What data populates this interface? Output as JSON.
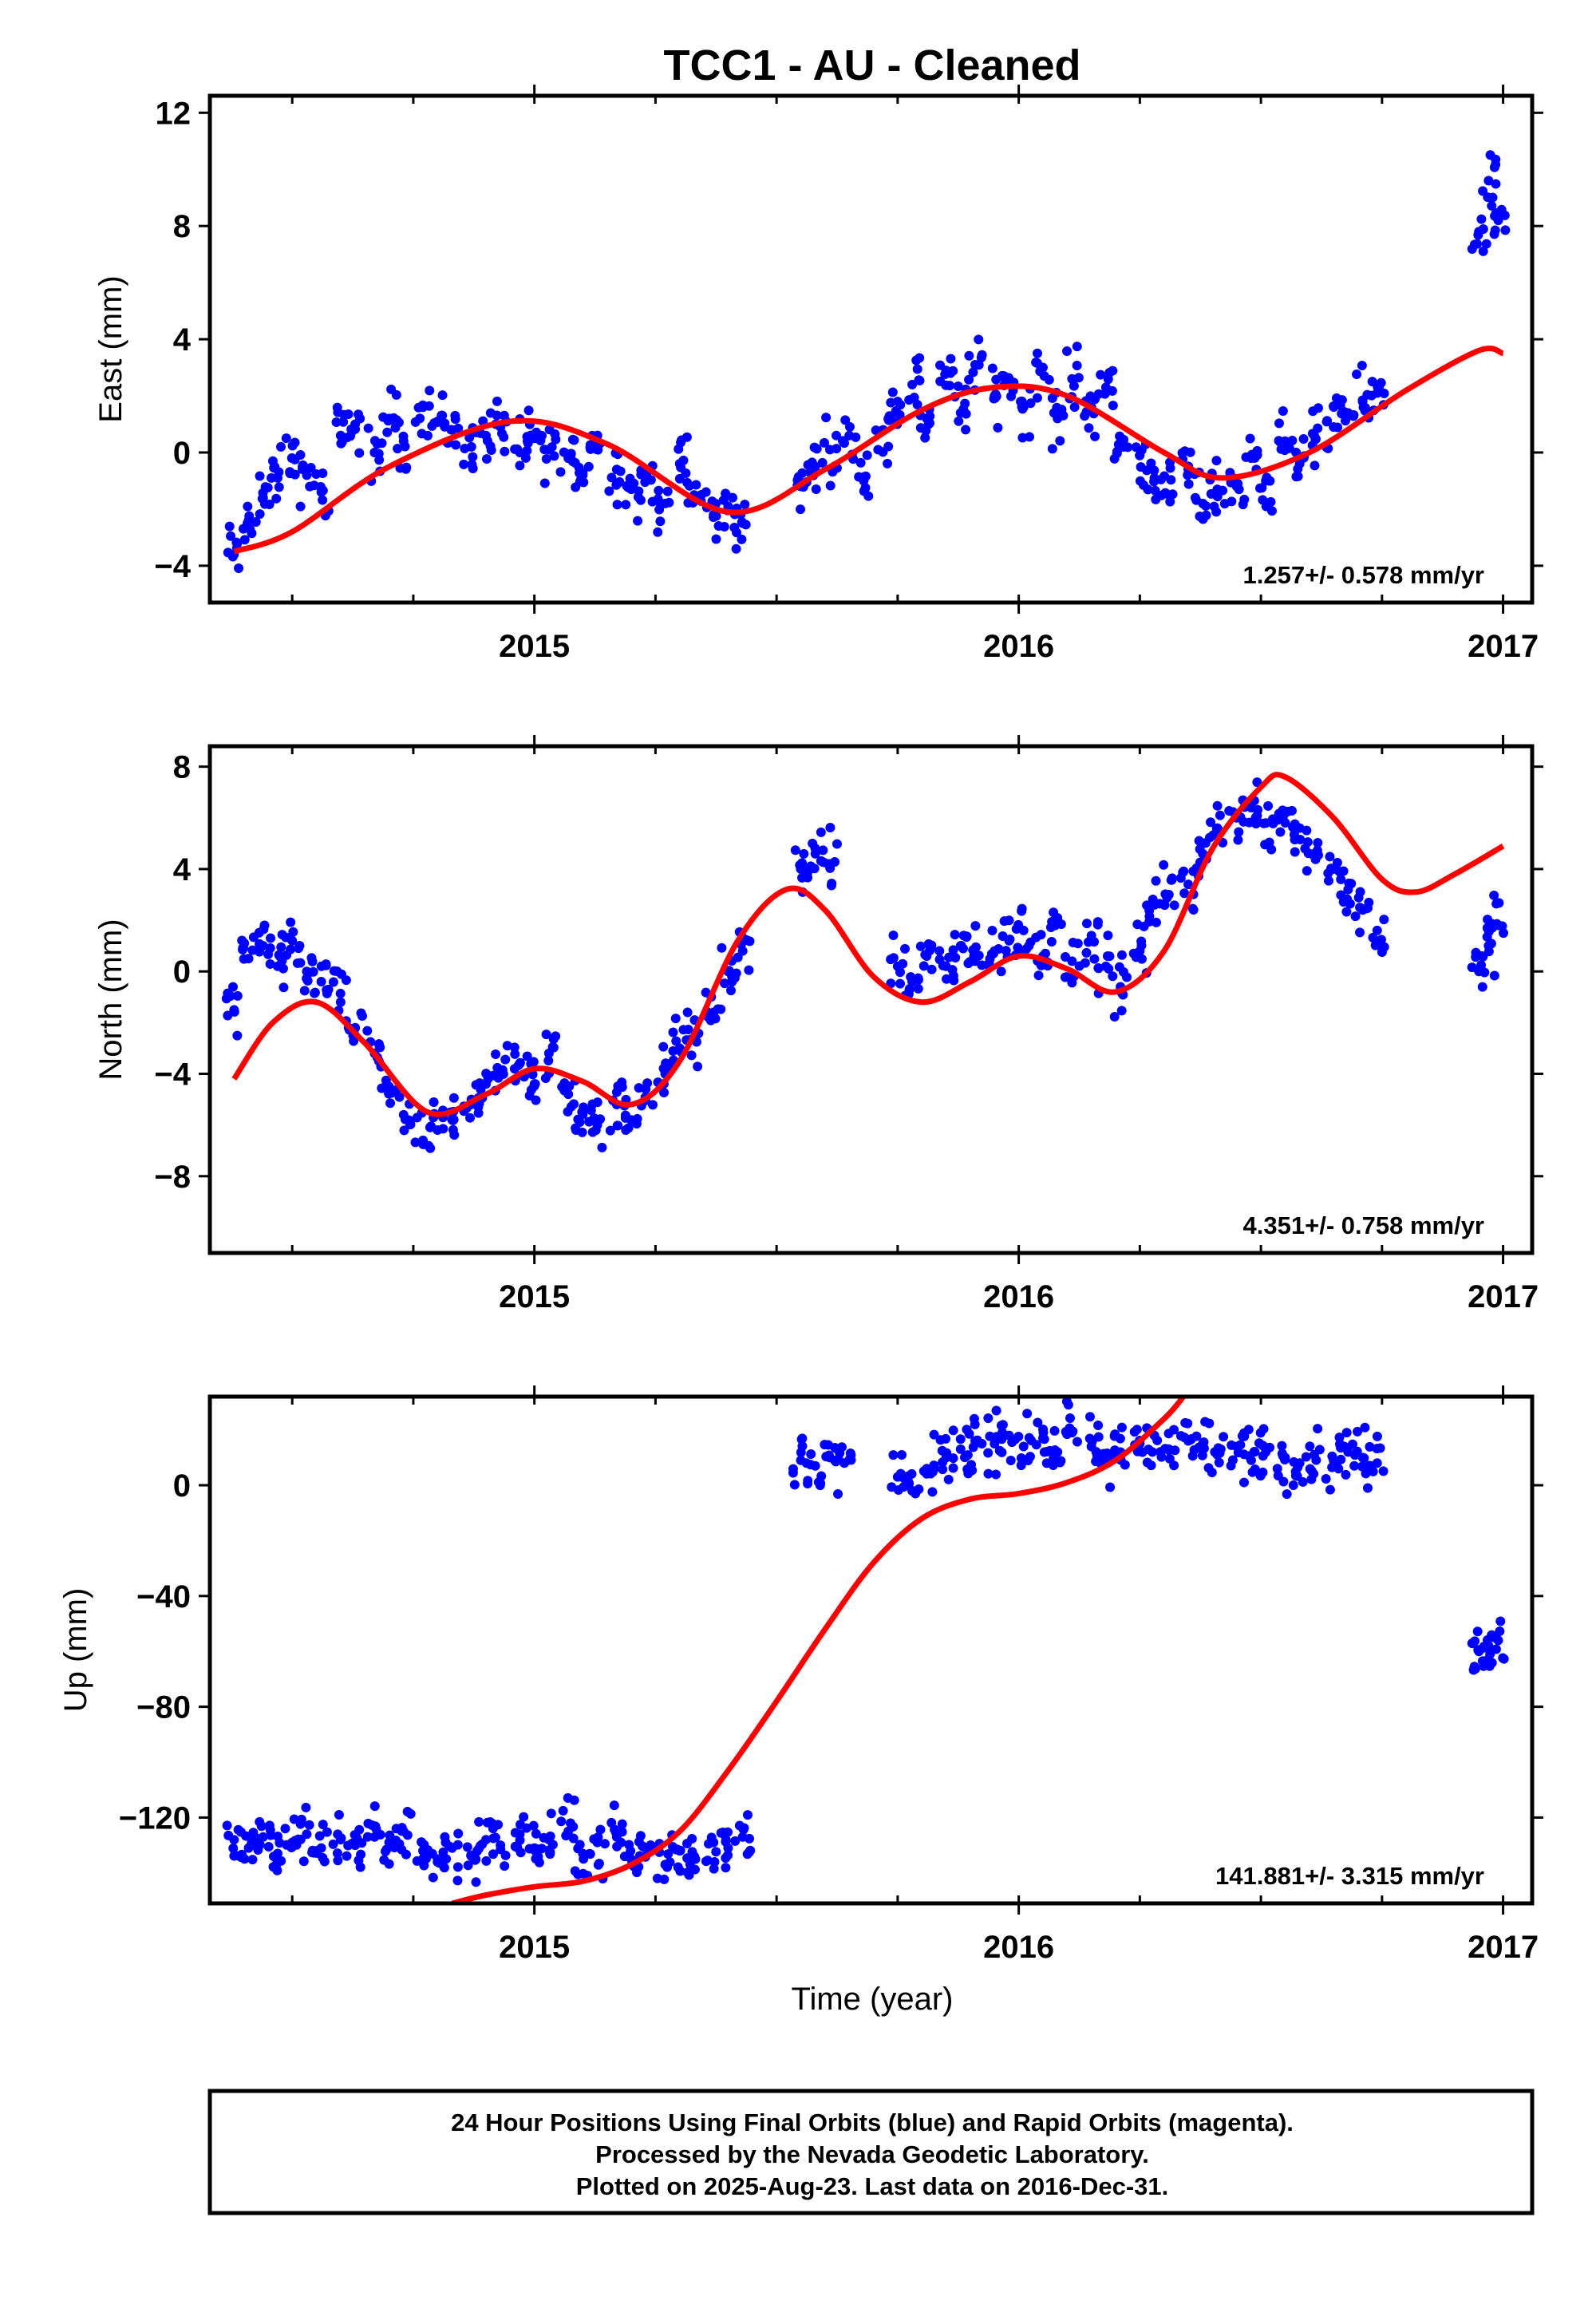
{
  "title": "TCC1  - AU - Cleaned",
  "colors": {
    "final_orbit": "#0000ff",
    "model_fit": "#ff0000"
  },
  "chart_data": [
    {
      "type": "scatter",
      "ylabel": "East (mm)",
      "xlabel": "",
      "xlim": [
        2014.33,
        2017.06
      ],
      "ylim": [
        -5.3,
        12.6
      ],
      "xticks": [
        2015,
        2016,
        2017
      ],
      "yticks": [
        -4,
        0,
        4,
        8,
        12
      ],
      "rate_text": "1.257+/- 0.578 mm/yr",
      "fit_curve": {
        "name": "",
        "x": [
          2014.38,
          2014.5,
          2014.7,
          2014.95,
          2015.15,
          2015.4,
          2015.6,
          2015.8,
          2015.95,
          2016.1,
          2016.3,
          2016.42,
          2016.6,
          2016.8,
          2016.95,
          2017.0
        ],
        "y": [
          -3.5,
          -2.8,
          -0.5,
          1.1,
          0.3,
          -2.1,
          -0.6,
          1.5,
          2.3,
          2.0,
          0.0,
          -0.9,
          0.0,
          2.2,
          3.6,
          3.5
        ]
      },
      "data_points": {
        "name": "",
        "x": [
          2014.38,
          2014.41,
          2014.44,
          2014.47,
          2014.5,
          2014.53,
          2014.56,
          2014.6,
          2014.63,
          2014.67,
          2014.7,
          2014.73,
          2014.77,
          2014.8,
          2014.83,
          2014.87,
          2014.9,
          2014.93,
          2014.97,
          2015.0,
          2015.03,
          2015.07,
          2015.1,
          2015.13,
          2015.17,
          2015.2,
          2015.23,
          2015.27,
          2015.3,
          2015.33,
          2015.37,
          2015.4,
          2015.43,
          2015.55,
          2015.58,
          2015.61,
          2015.65,
          2015.68,
          2015.72,
          2015.75,
          2015.78,
          2015.81,
          2015.85,
          2015.88,
          2015.91,
          2015.95,
          2015.98,
          2016.01,
          2016.05,
          2016.08,
          2016.11,
          2016.15,
          2016.18,
          2016.21,
          2016.25,
          2016.28,
          2016.31,
          2016.35,
          2016.38,
          2016.41,
          2016.45,
          2016.48,
          2016.51,
          2016.55,
          2016.58,
          2016.61,
          2016.65,
          2016.68,
          2016.71,
          2016.74,
          2016.95,
          2016.97,
          2016.99
        ],
        "y": [
          -3.6,
          -2.4,
          -1.6,
          -0.9,
          -0.2,
          -0.8,
          -1.4,
          0.6,
          1.0,
          0.0,
          1.2,
          0.4,
          1.6,
          1.1,
          0.8,
          0.2,
          0.6,
          0.9,
          0.0,
          0.5,
          0.1,
          -0.2,
          -0.7,
          0.4,
          -0.6,
          -1.3,
          -1.0,
          -1.8,
          -0.4,
          -1.5,
          -2.2,
          -1.9,
          -2.5,
          -1.2,
          -0.5,
          0.1,
          0.6,
          -1.0,
          0.8,
          1.8,
          2.4,
          1.2,
          2.9,
          1.4,
          3.1,
          2.0,
          2.6,
          1.6,
          3.0,
          1.2,
          2.6,
          1.6,
          2.3,
          0.2,
          -0.1,
          -0.9,
          -1.5,
          -0.6,
          -1.8,
          -1.3,
          -1.2,
          -0.2,
          -1.0,
          0.4,
          -0.4,
          0.6,
          0.9,
          1.4,
          1.8,
          2.1,
          7.8,
          9.6,
          8.2
        ]
      }
    },
    {
      "type": "scatter",
      "ylabel": "North (mm)",
      "xlabel": "",
      "xlim": [
        2014.33,
        2017.06
      ],
      "ylim": [
        -11.0,
        8.8
      ],
      "xticks": [
        2015,
        2016,
        2017
      ],
      "yticks": [
        -8,
        -4,
        0,
        4,
        8
      ],
      "rate_text": "4.351+/- 0.758 mm/yr",
      "fit_curve": {
        "name": "",
        "x": [
          2014.38,
          2014.46,
          2014.55,
          2014.65,
          2014.78,
          2014.9,
          2015.0,
          2015.1,
          2015.2,
          2015.3,
          2015.42,
          2015.52,
          2015.6,
          2015.7,
          2015.8,
          2015.9,
          2016.0,
          2016.1,
          2016.2,
          2016.3,
          2016.4,
          2016.5,
          2016.55,
          2016.65,
          2016.75,
          2016.82,
          2016.9,
          2017.0
        ],
        "y": [
          -4.2,
          -2.0,
          -1.2,
          -2.8,
          -5.5,
          -4.8,
          -3.8,
          -4.3,
          -5.2,
          -3.5,
          1.2,
          3.2,
          2.4,
          -0.2,
          -1.2,
          -0.4,
          0.6,
          0.1,
          -0.8,
          0.8,
          4.8,
          7.2,
          7.6,
          6.0,
          3.6,
          3.1,
          3.8,
          4.9
        ]
      },
      "data_points": {
        "name": "",
        "x": [
          2014.38,
          2014.41,
          2014.44,
          2014.47,
          2014.5,
          2014.53,
          2014.56,
          2014.6,
          2014.63,
          2014.67,
          2014.7,
          2014.73,
          2014.77,
          2014.8,
          2014.83,
          2014.87,
          2014.9,
          2014.93,
          2014.97,
          2015.0,
          2015.03,
          2015.07,
          2015.1,
          2015.13,
          2015.17,
          2015.2,
          2015.23,
          2015.27,
          2015.3,
          2015.33,
          2015.37,
          2015.4,
          2015.43,
          2015.55,
          2015.58,
          2015.61,
          2015.75,
          2015.78,
          2015.81,
          2015.85,
          2015.88,
          2015.91,
          2015.95,
          2015.98,
          2016.01,
          2016.05,
          2016.08,
          2016.11,
          2016.15,
          2016.18,
          2016.21,
          2016.25,
          2016.28,
          2016.31,
          2016.35,
          2016.38,
          2016.41,
          2016.45,
          2016.48,
          2016.51,
          2016.55,
          2016.58,
          2016.61,
          2016.65,
          2016.68,
          2016.71,
          2016.74,
          2016.95,
          2016.97,
          2016.99
        ],
        "y": [
          -1.5,
          0.5,
          1.0,
          0.2,
          1.2,
          0.0,
          -0.4,
          -1.2,
          -2.2,
          -3.2,
          -4.5,
          -5.6,
          -6.6,
          -6.2,
          -5.8,
          -5.0,
          -4.4,
          -4.0,
          -3.6,
          -4.4,
          -3.2,
          -4.8,
          -5.6,
          -6.0,
          -5.2,
          -5.8,
          -4.6,
          -4.0,
          -3.0,
          -2.6,
          -1.6,
          0.0,
          0.8,
          4.0,
          4.6,
          4.2,
          0.2,
          -0.4,
          0.6,
          0.2,
          1.0,
          0.4,
          0.8,
          1.2,
          1.6,
          0.6,
          2.0,
          0.4,
          1.4,
          0.2,
          -0.6,
          0.8,
          2.6,
          3.0,
          3.4,
          4.6,
          5.6,
          6.0,
          6.4,
          5.8,
          6.2,
          5.6,
          4.6,
          4.0,
          3.2,
          2.4,
          1.6,
          0.0,
          1.0,
          1.8
        ]
      }
    },
    {
      "type": "scatter",
      "ylabel": "Up (mm)",
      "xlabel": "Time (year)",
      "xlim": [
        2014.33,
        2017.06
      ],
      "ylim": [
        -151,
        32
      ],
      "xticks": [
        2015,
        2016,
        2017
      ],
      "yticks": [
        -120,
        -80,
        -40,
        0
      ],
      "rate_text": "141.881+/- 3.315 mm/yr",
      "fit_curve": {
        "name": "",
        "x": [
          2014.83,
          2014.9,
          2015.0,
          2015.1,
          2015.2,
          2015.3,
          2015.4,
          2015.5,
          2015.6,
          2015.7,
          2015.8,
          2015.9,
          2016.0,
          2016.1,
          2016.2,
          2016.3,
          2016.34
        ],
        "y": [
          -151,
          -148,
          -145,
          -143,
          -137,
          -125,
          -103,
          -78,
          -52,
          -28,
          -12,
          -5,
          -3,
          1,
          9,
          24,
          32
        ]
      },
      "data_points": {
        "name": "",
        "x": [
          2014.38,
          2014.41,
          2014.44,
          2014.47,
          2014.5,
          2014.53,
          2014.56,
          2014.6,
          2014.63,
          2014.67,
          2014.7,
          2014.73,
          2014.77,
          2014.8,
          2014.83,
          2014.87,
          2014.9,
          2014.93,
          2014.97,
          2015.0,
          2015.03,
          2015.07,
          2015.1,
          2015.13,
          2015.17,
          2015.2,
          2015.23,
          2015.27,
          2015.3,
          2015.33,
          2015.37,
          2015.4,
          2015.43,
          2015.55,
          2015.58,
          2015.61,
          2015.64,
          2015.75,
          2015.78,
          2015.81,
          2015.85,
          2015.88,
          2015.91,
          2015.95,
          2015.98,
          2016.01,
          2016.05,
          2016.08,
          2016.11,
          2016.15,
          2016.18,
          2016.21,
          2016.25,
          2016.28,
          2016.31,
          2016.35,
          2016.38,
          2016.41,
          2016.45,
          2016.48,
          2016.51,
          2016.55,
          2016.58,
          2016.61,
          2016.65,
          2016.68,
          2016.71,
          2016.74,
          2016.95,
          2016.97,
          2016.99
        ],
        "y": [
          -128,
          -131,
          -127,
          -133,
          -129,
          -126,
          -131,
          -128,
          -130,
          -127,
          -129,
          -125,
          -132,
          -136,
          -131,
          -134,
          -128,
          -130,
          -126,
          -131,
          -128,
          -125,
          -133,
          -129,
          -127,
          -135,
          -131,
          -137,
          -132,
          -134,
          -129,
          -131,
          -127,
          9,
          7,
          10,
          8,
          3,
          -2,
          6,
          10,
          13,
          16,
          15,
          18,
          14,
          17,
          12,
          19,
          14,
          8,
          12,
          15,
          18,
          13,
          16,
          15,
          11,
          14,
          9,
          12,
          10,
          8,
          11,
          9,
          12,
          10,
          8,
          -60,
          -58,
          -56
        ]
      }
    }
  ],
  "footer": {
    "line1": "24 Hour Positions Using Final Orbits (blue) and Rapid Orbits (magenta).",
    "line2": "Processed by the Nevada Geodetic Laboratory.",
    "line3": "Plotted on 2025-Aug-23. Last data on 2016-Dec-31."
  }
}
